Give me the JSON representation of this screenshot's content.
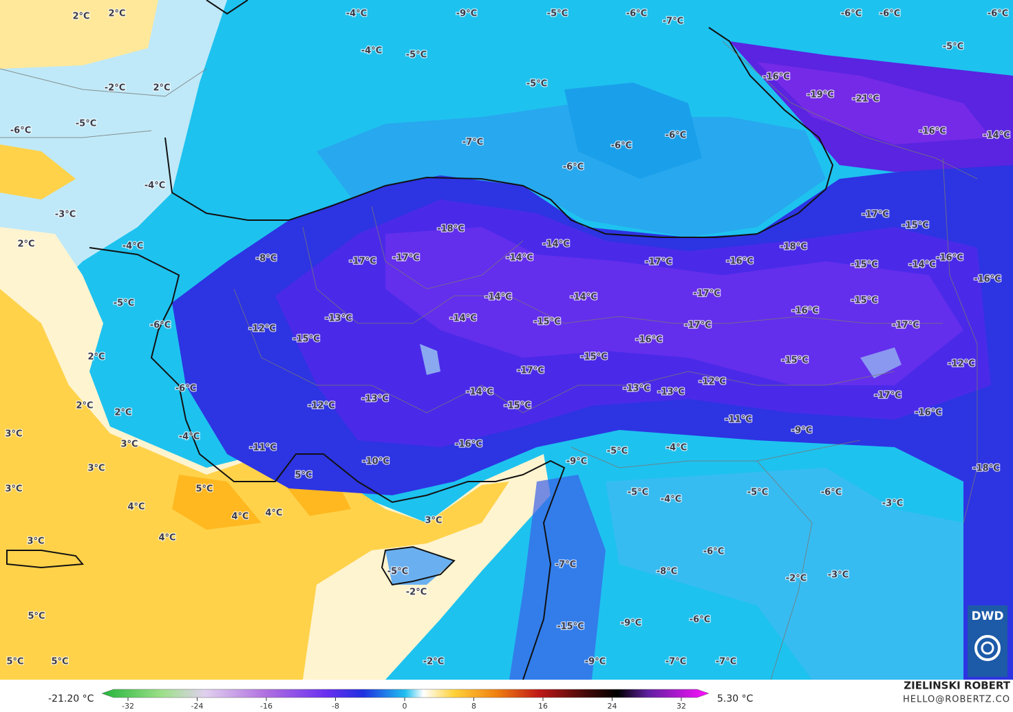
{
  "labels": [
    "2°C",
    "2°C",
    "-4°C",
    "-9°C",
    "-5°C",
    "-6°C",
    "-7°C",
    "-6°C",
    "-6°C",
    "-6°C",
    "-4°C",
    "-5°C",
    "-5°C",
    "-2°C",
    "2°C",
    "-5°C",
    "-16°C",
    "-19°C",
    "-21°C",
    "-6°C",
    "-5°C",
    "-6°C",
    "-7°C",
    "-6°C",
    "-16°C",
    "-14°C",
    "-6°C",
    "-4°C",
    "-3°C",
    "-17°C",
    "-15°C",
    "-18°C",
    "2°C",
    "-4°C",
    "-14°C",
    "-18°C",
    "-8°C",
    "-17°C",
    "-17°C",
    "-14°C",
    "-17°C",
    "-16°C",
    "-15°C",
    "-14°C",
    "-16°C",
    "-16°C",
    "-5°C",
    "-14°C",
    "-14°C",
    "-17°C",
    "-15°C",
    "-16°C",
    "-13°C",
    "-14°C",
    "-15°C",
    "-6°C",
    "-12°C",
    "-17°C",
    "-17°C",
    "-15°C",
    "-16°C",
    "2°C",
    "-15°C",
    "-15°C",
    "-12°C",
    "-17°C",
    "-12°C",
    "-6°C",
    "-13°C",
    "-13°C",
    "-14°C",
    "-17°C",
    "-13°C",
    "-12°C",
    "2°C",
    "-15°C",
    "2°C",
    "-16°C",
    "-11°C",
    "3°C",
    "-4°C",
    "-9°C",
    "3°C",
    "-16°C",
    "-11°C",
    "-5°C",
    "-4°C",
    "-9°C",
    "-10°C",
    "-18°C",
    "3°C",
    "5°C",
    "3°C",
    "5°C",
    "-5°C",
    "-5°C",
    "-6°C",
    "-4°C",
    "-3°C",
    "4°C",
    "4°C",
    "4°C",
    "3°C",
    "4°C",
    "3°C",
    "-6°C",
    "-7°C",
    "-8°C",
    "-5°C",
    "-2°C",
    "-3°C",
    "-2°C",
    "5°C",
    "-6°C",
    "-9°C",
    "-15°C",
    "-2°C",
    "-9°C",
    "-7°C",
    "-7°C",
    "5°C",
    "5°C"
  ],
  "legend": {
    "min_label": "-21.20 °C",
    "max_label": "5.30 °C",
    "ticks": [
      -32,
      -24,
      -16,
      -8,
      0,
      8,
      16,
      24,
      32
    ]
  },
  "credit": {
    "name": "ZIELINSKI ROBERT",
    "email": "HELLO@ROBERTZ.CO"
  },
  "logo": "DWD"
}
